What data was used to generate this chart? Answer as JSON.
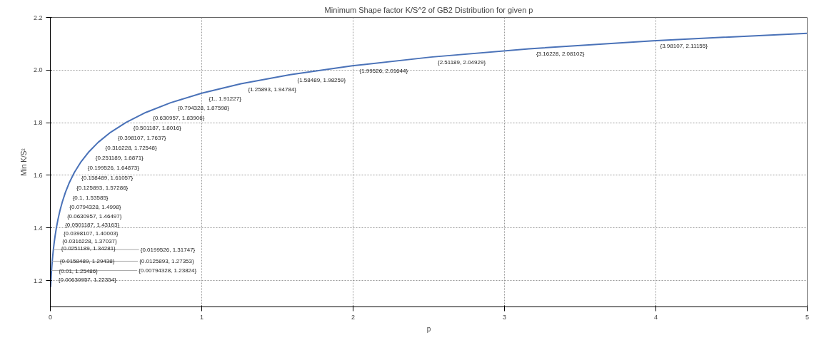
{
  "chart_data": {
    "type": "line",
    "title": "Minimum Shape factor K/S^2 of GB2 Distribution for given p",
    "xlabel": "p",
    "ylabel": "Min K/S²",
    "series": [
      {
        "color": "#4a72b8",
        "x": [
          0.002,
          0.00398,
          0.00630957,
          0.00794328,
          0.01,
          0.0125893,
          0.0158489,
          0.0199526,
          0.0251189,
          0.0316228,
          0.0398107,
          0.0501187,
          0.0630957,
          0.0794328,
          0.1,
          0.125893,
          0.158489,
          0.199526,
          0.251189,
          0.316228,
          0.398107,
          0.501187,
          0.630957,
          0.794328,
          1,
          1.25893,
          1.58489,
          1.99526,
          2.51189,
          3.16228,
          3.98107,
          5
        ],
        "values": [
          1.175,
          1.2,
          1.22354,
          1.23824,
          1.25486,
          1.27353,
          1.29438,
          1.31747,
          1.34281,
          1.37037,
          1.40003,
          1.43163,
          1.46497,
          1.4998,
          1.53585,
          1.57286,
          1.61057,
          1.64873,
          1.6871,
          1.72548,
          1.7637,
          1.8016,
          1.83906,
          1.87598,
          1.91227,
          1.94784,
          1.98259,
          2.01644,
          2.04929,
          2.08102,
          2.11155,
          2.14
        ]
      }
    ],
    "xlim": [
      0,
      5
    ],
    "ylim": [
      1.1,
      2.2
    ],
    "xticks": [
      0,
      1,
      2,
      3,
      4,
      5
    ],
    "yticks": [
      1.2,
      1.4,
      1.6,
      1.8,
      {
        "value": 2.0,
        "label": "2.0"
      },
      2.2
    ],
    "grid": true,
    "line_style": "solid",
    "marker": "none",
    "annotations": [
      {
        "text": "{0.00630957, 1.22354}",
        "x": 0.00630957,
        "y": 1.22354
      },
      {
        "text": "{0.00794328, 1.23824}",
        "x": 0.00794328,
        "y": 1.23824
      },
      {
        "text": "{0.01, 1.25486}",
        "x": 0.01,
        "y": 1.25486
      },
      {
        "text": "{0.0125893, 1.27353}",
        "x": 0.0125893,
        "y": 1.27353
      },
      {
        "text": "{0.0158489, 1.29438}",
        "x": 0.0158489,
        "y": 1.29438
      },
      {
        "text": "{0.0199526, 1.31747}",
        "x": 0.0199526,
        "y": 1.31747
      },
      {
        "text": "{0.0251189, 1.34281}",
        "x": 0.0251189,
        "y": 1.34281
      },
      {
        "text": "{0.0316228, 1.37037}",
        "x": 0.0316228,
        "y": 1.37037
      },
      {
        "text": "{0.0398107, 1.40003}",
        "x": 0.0398107,
        "y": 1.40003
      },
      {
        "text": "{0.0501187, 1.43163}",
        "x": 0.0501187,
        "y": 1.43163
      },
      {
        "text": "{0.0630957, 1.46497}",
        "x": 0.0630957,
        "y": 1.46497
      },
      {
        "text": "{0.0794328, 1.4998}",
        "x": 0.0794328,
        "y": 1.4998
      },
      {
        "text": "{0.1, 1.53585}",
        "x": 0.1,
        "y": 1.53585
      },
      {
        "text": "{0.125893, 1.57286}",
        "x": 0.125893,
        "y": 1.57286
      },
      {
        "text": "{0.158489, 1.61057}",
        "x": 0.158489,
        "y": 1.61057
      },
      {
        "text": "{0.199526, 1.64873}",
        "x": 0.199526,
        "y": 1.64873
      },
      {
        "text": "{0.251189, 1.6871}",
        "x": 0.251189,
        "y": 1.6871
      },
      {
        "text": "{0.316228, 1.72548}",
        "x": 0.316228,
        "y": 1.72548
      },
      {
        "text": "{0.398107, 1.7637}",
        "x": 0.398107,
        "y": 1.7637
      },
      {
        "text": "{0.501187, 1.8016}",
        "x": 0.501187,
        "y": 1.8016
      },
      {
        "text": "{0.630957, 1.83906}",
        "x": 0.630957,
        "y": 1.83906
      },
      {
        "text": "{0.794328, 1.87598}",
        "x": 0.794328,
        "y": 1.87598
      },
      {
        "text": "{1., 1.91227}",
        "x": 1,
        "y": 1.91227
      },
      {
        "text": "{1.25893, 1.94784}",
        "x": 1.25893,
        "y": 1.94784
      },
      {
        "text": "{1.58489, 1.98259}",
        "x": 1.58489,
        "y": 1.98259
      },
      {
        "text": "{1.99526, 2.01644}",
        "x": 1.99526,
        "y": 2.01644
      },
      {
        "text": "{2.51189, 2.04929}",
        "x": 2.51189,
        "y": 2.04929
      },
      {
        "text": "{3.16228, 2.08102}",
        "x": 3.16228,
        "y": 2.08102
      },
      {
        "text": "{3.98107, 2.11155}",
        "x": 3.98107,
        "y": 2.11155
      }
    ]
  }
}
